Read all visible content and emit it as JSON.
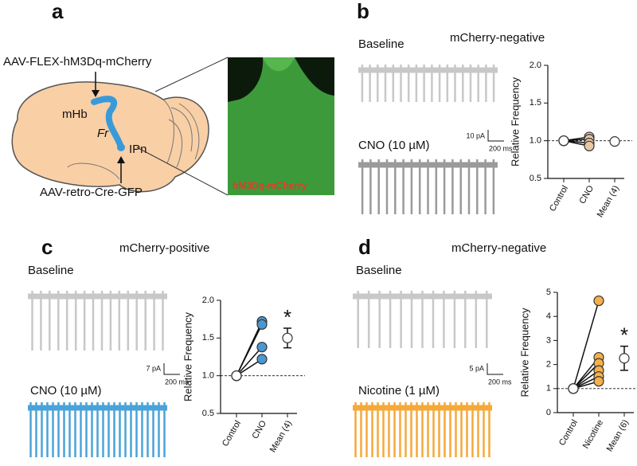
{
  "panel_a": {
    "label": "a",
    "virus_top": "AAV-FLEX-hM3Dq-mCherry",
    "virus_bottom": "AAV-retro-Cre-GFP",
    "mhb": "mHb",
    "fr": "Fr",
    "ipn": "IPn",
    "image_label": "hM3Dq-mCherry"
  },
  "panels": [
    {
      "label": "b",
      "title": "mCherry-negative",
      "baseline_label": "Baseline",
      "treatment_label": "CNO (10 µM)",
      "scale_y": "10 pA",
      "scale_x": "200 ms"
    },
    {
      "label": "c",
      "title": "mCherry-positive",
      "baseline_label": "Baseline",
      "treatment_label": "CNO (10 µM)",
      "scale_y": "7 pA",
      "scale_x": "200 ms"
    },
    {
      "label": "d",
      "title": "mCherry-negative",
      "baseline_label": "Baseline",
      "treatment_label": "Nicotine (1 µM)",
      "scale_y": "5 pA",
      "scale_x": "200 ms"
    }
  ],
  "chart_data": [
    {
      "type": "paired",
      "ylabel": "Relative Frequency",
      "categories": [
        "Control",
        "CNO",
        "Mean (4)"
      ],
      "ylim": [
        0.5,
        2.0
      ],
      "yticks": [
        0.5,
        {
          "value": 1,
          "label": "1.0"
        },
        1.5,
        {
          "value": 2,
          "label": "2.0"
        }
      ],
      "reference": 1,
      "control": [
        1,
        1,
        1,
        1
      ],
      "treatment": [
        1.05,
        1.02,
        0.97,
        0.93
      ],
      "mean": 0.99,
      "error": 0.02,
      "color": "#e9c7a6"
    },
    {
      "type": "paired",
      "ylabel": "Relative Frequency",
      "categories": [
        "Control",
        "CNO",
        "Mean (4)"
      ],
      "ylim": [
        0.5,
        2.0
      ],
      "yticks": [
        0.5,
        {
          "value": 1,
          "label": "1.0"
        },
        1.5,
        {
          "value": 2,
          "label": "2.0"
        }
      ],
      "reference": 1,
      "control": [
        1,
        1,
        1,
        1
      ],
      "treatment": [
        1.72,
        1.68,
        1.38,
        1.22
      ],
      "mean": 1.5,
      "error": 0.13,
      "color": "#4a98d0",
      "annotation": "*"
    },
    {
      "type": "paired",
      "ylabel": "Relative Frequency",
      "categories": [
        "Control",
        "Nicotine",
        "Mean (6)"
      ],
      "ylim": [
        0,
        5
      ],
      "yticks": [
        0,
        1,
        2,
        3,
        4,
        5
      ],
      "reference": 1,
      "control": [
        1,
        1,
        1,
        1,
        1,
        1
      ],
      "treatment": [
        4.65,
        2.3,
        2.05,
        1.75,
        1.5,
        1.3
      ],
      "mean": 2.26,
      "error": 0.5,
      "color": "#f5b04a",
      "annotation": "*"
    }
  ]
}
